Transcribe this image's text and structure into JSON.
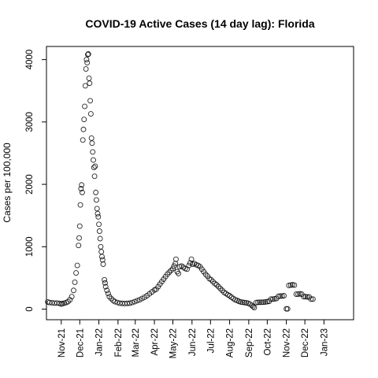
{
  "chart_data": {
    "type": "scatter",
    "title": "COVID-19 Active Cases (14 day lag): Florida",
    "xlabel": "",
    "ylabel": "Cases per 100,000",
    "marker": "open-circle",
    "grid": false,
    "legend": "none",
    "x_axis": {
      "type": "date",
      "range": [
        "2021-10-08",
        "2023-02-18"
      ],
      "ticks": [
        {
          "date": "2021-11-01",
          "label": "Nov-21"
        },
        {
          "date": "2021-12-01",
          "label": "Dec-21"
        },
        {
          "date": "2022-01-01",
          "label": "Jan-22"
        },
        {
          "date": "2022-02-01",
          "label": "Feb-22"
        },
        {
          "date": "2022-03-01",
          "label": "Mar-22"
        },
        {
          "date": "2022-04-01",
          "label": "Apr-22"
        },
        {
          "date": "2022-05-01",
          "label": "May-22"
        },
        {
          "date": "2022-06-01",
          "label": "Jun-22"
        },
        {
          "date": "2022-07-01",
          "label": "Jul-22"
        },
        {
          "date": "2022-08-01",
          "label": "Aug-22"
        },
        {
          "date": "2022-09-01",
          "label": "Sep-22"
        },
        {
          "date": "2022-10-01",
          "label": "Oct-22"
        },
        {
          "date": "2022-11-01",
          "label": "Nov-22"
        },
        {
          "date": "2022-12-01",
          "label": "Dec-22"
        },
        {
          "date": "2023-01-01",
          "label": "Jan-23"
        }
      ]
    },
    "y_axis": {
      "range": [
        -170,
        4210
      ],
      "ticks": [
        0,
        1000,
        2000,
        3000,
        4000
      ]
    },
    "series": [
      {
        "points": [
          [
            "2021-10-10",
            115
          ],
          [
            "2021-10-13",
            105
          ],
          [
            "2021-10-17",
            102
          ],
          [
            "2021-10-21",
            96
          ],
          [
            "2021-10-25",
            98
          ],
          [
            "2021-10-29",
            92
          ],
          [
            "2021-11-01",
            82
          ],
          [
            "2021-11-03",
            90
          ],
          [
            "2021-11-06",
            96
          ],
          [
            "2021-11-09",
            105
          ],
          [
            "2021-11-12",
            120
          ],
          [
            "2021-11-15",
            150
          ],
          [
            "2021-11-18",
            200
          ],
          [
            "2021-11-21",
            300
          ],
          [
            "2021-11-23",
            430
          ],
          [
            "2021-11-25",
            580
          ],
          [
            "2021-11-27",
            700
          ],
          [
            "2021-11-29",
            1020
          ],
          [
            "2021-11-30",
            1140
          ],
          [
            "2021-12-01",
            1330
          ],
          [
            "2021-12-02",
            1670
          ],
          [
            "2021-12-03",
            1930
          ],
          [
            "2021-12-04",
            1990
          ],
          [
            "2021-12-05",
            1870
          ],
          [
            "2021-12-06",
            2710
          ],
          [
            "2021-12-07",
            2880
          ],
          [
            "2021-12-08",
            3040
          ],
          [
            "2021-12-09",
            3250
          ],
          [
            "2021-12-10",
            3580
          ],
          [
            "2021-12-11",
            3850
          ],
          [
            "2021-12-12",
            4000
          ],
          [
            "2021-12-13",
            3950
          ],
          [
            "2021-12-14",
            4080
          ],
          [
            "2021-12-15",
            4090
          ],
          [
            "2021-12-16",
            3700
          ],
          [
            "2021-12-17",
            3620
          ],
          [
            "2021-12-18",
            3340
          ],
          [
            "2021-12-19",
            3130
          ],
          [
            "2021-12-20",
            2740
          ],
          [
            "2021-12-21",
            2660
          ],
          [
            "2021-12-22",
            2520
          ],
          [
            "2021-12-23",
            2390
          ],
          [
            "2021-12-24",
            2270
          ],
          [
            "2021-12-25",
            2130
          ],
          [
            "2021-12-26",
            2290
          ],
          [
            "2021-12-27",
            1870
          ],
          [
            "2021-12-28",
            1750
          ],
          [
            "2021-12-29",
            1610
          ],
          [
            "2021-12-30",
            1530
          ],
          [
            "2021-12-31",
            1480
          ],
          [
            "2022-01-01",
            1360
          ],
          [
            "2022-01-02",
            1250
          ],
          [
            "2022-01-03",
            1130
          ],
          [
            "2022-01-04",
            1000
          ],
          [
            "2022-01-05",
            920
          ],
          [
            "2022-01-06",
            840
          ],
          [
            "2022-01-07",
            790
          ],
          [
            "2022-01-08",
            720
          ],
          [
            "2022-01-10",
            470
          ],
          [
            "2022-01-11",
            420
          ],
          [
            "2022-01-12",
            360
          ],
          [
            "2022-01-14",
            300
          ],
          [
            "2022-01-16",
            250
          ],
          [
            "2022-01-18",
            200
          ],
          [
            "2022-01-21",
            170
          ],
          [
            "2022-01-24",
            140
          ],
          [
            "2022-01-27",
            120
          ],
          [
            "2022-01-31",
            105
          ],
          [
            "2022-02-04",
            95
          ],
          [
            "2022-02-08",
            92
          ],
          [
            "2022-02-12",
            90
          ],
          [
            "2022-02-16",
            92
          ],
          [
            "2022-02-20",
            95
          ],
          [
            "2022-02-24",
            105
          ],
          [
            "2022-02-28",
            120
          ],
          [
            "2022-03-04",
            135
          ],
          [
            "2022-03-08",
            150
          ],
          [
            "2022-03-12",
            170
          ],
          [
            "2022-03-16",
            190
          ],
          [
            "2022-03-20",
            215
          ],
          [
            "2022-03-24",
            245
          ],
          [
            "2022-03-28",
            275
          ],
          [
            "2022-04-01",
            305
          ],
          [
            "2022-04-04",
            320
          ],
          [
            "2022-04-07",
            360
          ],
          [
            "2022-04-10",
            400
          ],
          [
            "2022-04-13",
            440
          ],
          [
            "2022-04-16",
            480
          ],
          [
            "2022-04-19",
            520
          ],
          [
            "2022-04-22",
            560
          ],
          [
            "2022-04-25",
            590
          ],
          [
            "2022-04-28",
            620
          ],
          [
            "2022-05-01",
            650
          ],
          [
            "2022-05-03",
            690
          ],
          [
            "2022-05-05",
            730
          ],
          [
            "2022-05-06",
            800
          ],
          [
            "2022-05-08",
            600
          ],
          [
            "2022-05-10",
            570
          ],
          [
            "2022-05-12",
            680
          ],
          [
            "2022-05-15",
            690
          ],
          [
            "2022-05-18",
            670
          ],
          [
            "2022-05-21",
            650
          ],
          [
            "2022-05-24",
            640
          ],
          [
            "2022-05-27",
            700
          ],
          [
            "2022-05-29",
            740
          ],
          [
            "2022-05-31",
            800
          ],
          [
            "2022-06-02",
            720
          ],
          [
            "2022-06-05",
            730
          ],
          [
            "2022-06-08",
            710
          ],
          [
            "2022-06-11",
            700
          ],
          [
            "2022-06-14",
            680
          ],
          [
            "2022-06-17",
            640
          ],
          [
            "2022-06-20",
            600
          ],
          [
            "2022-06-23",
            560
          ],
          [
            "2022-06-26",
            530
          ],
          [
            "2022-06-29",
            490
          ],
          [
            "2022-07-02",
            470
          ],
          [
            "2022-07-05",
            440
          ],
          [
            "2022-07-08",
            410
          ],
          [
            "2022-07-11",
            390
          ],
          [
            "2022-07-14",
            360
          ],
          [
            "2022-07-17",
            330
          ],
          [
            "2022-07-20",
            300
          ],
          [
            "2022-07-23",
            270
          ],
          [
            "2022-07-26",
            250
          ],
          [
            "2022-07-29",
            230
          ],
          [
            "2022-08-01",
            215
          ],
          [
            "2022-08-04",
            190
          ],
          [
            "2022-08-07",
            170
          ],
          [
            "2022-08-10",
            150
          ],
          [
            "2022-08-13",
            140
          ],
          [
            "2022-08-16",
            125
          ],
          [
            "2022-08-19",
            115
          ],
          [
            "2022-08-22",
            110
          ],
          [
            "2022-08-25",
            105
          ],
          [
            "2022-08-28",
            100
          ],
          [
            "2022-08-31",
            95
          ],
          [
            "2022-09-03",
            80
          ],
          [
            "2022-09-06",
            60
          ],
          [
            "2022-09-08",
            40
          ],
          [
            "2022-09-10",
            25
          ],
          [
            "2022-09-13",
            105
          ],
          [
            "2022-09-16",
            108
          ],
          [
            "2022-09-19",
            110
          ],
          [
            "2022-09-22",
            110
          ],
          [
            "2022-09-25",
            112
          ],
          [
            "2022-09-28",
            115
          ],
          [
            "2022-10-01",
            120
          ],
          [
            "2022-10-04",
            125
          ],
          [
            "2022-10-07",
            160
          ],
          [
            "2022-10-10",
            160
          ],
          [
            "2022-10-13",
            165
          ],
          [
            "2022-10-16",
            170
          ],
          [
            "2022-10-19",
            205
          ],
          [
            "2022-10-22",
            210
          ],
          [
            "2022-10-25",
            210
          ],
          [
            "2022-10-28",
            215
          ],
          [
            "2022-11-01",
            5
          ],
          [
            "2022-11-03",
            5
          ],
          [
            "2022-11-05",
            380
          ],
          [
            "2022-11-08",
            385
          ],
          [
            "2022-11-11",
            390
          ],
          [
            "2022-11-14",
            385
          ],
          [
            "2022-11-17",
            240
          ],
          [
            "2022-11-20",
            240
          ],
          [
            "2022-11-23",
            245
          ],
          [
            "2022-11-26",
            240
          ],
          [
            "2022-11-29",
            200
          ],
          [
            "2022-12-02",
            200
          ],
          [
            "2022-12-05",
            195
          ],
          [
            "2022-12-08",
            195
          ],
          [
            "2022-12-11",
            160
          ],
          [
            "2022-12-14",
            160
          ]
        ]
      }
    ]
  }
}
